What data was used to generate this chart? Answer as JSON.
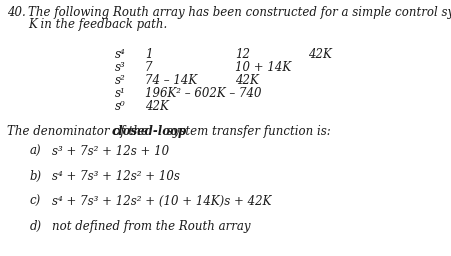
{
  "bg_color": "#ffffff",
  "text_color": "#1a1a1a",
  "font_size": 8.5,
  "title_num": "40.",
  "title_line1": "The following Routh array has been constructed for a simple control system with a gain of",
  "title_line2": "K in the feedback path.",
  "routh_rows": [
    {
      "power": "s⁴",
      "col1": "1",
      "col2": "12",
      "col3": "42K"
    },
    {
      "power": "s³",
      "col1": "7",
      "col2": "10 + 14K",
      "col3": ""
    },
    {
      "power": "s²",
      "col1": "74 – 14K",
      "col2": "42K",
      "col3": ""
    },
    {
      "power": "s¹",
      "col1": "196K² – 602K – 740",
      "col2": "",
      "col3": ""
    },
    {
      "power": "s⁰",
      "col1": "42K",
      "col2": "",
      "col3": ""
    }
  ],
  "q_prefix": "The denominator of the ",
  "q_bold": "closed-loop",
  "q_suffix": " system transfer function is:",
  "options": [
    {
      "label": "a)",
      "text": "s³ + 7s² + 12s + 10"
    },
    {
      "label": "b)",
      "text": "s⁴ + 7s³ + 12s² + 10s"
    },
    {
      "label": "c)",
      "text": "s⁴ + 7s³ + 12s² + (10 + 14K)s + 42K"
    },
    {
      "label": "d)",
      "text": "not defined from the Routh array"
    }
  ]
}
